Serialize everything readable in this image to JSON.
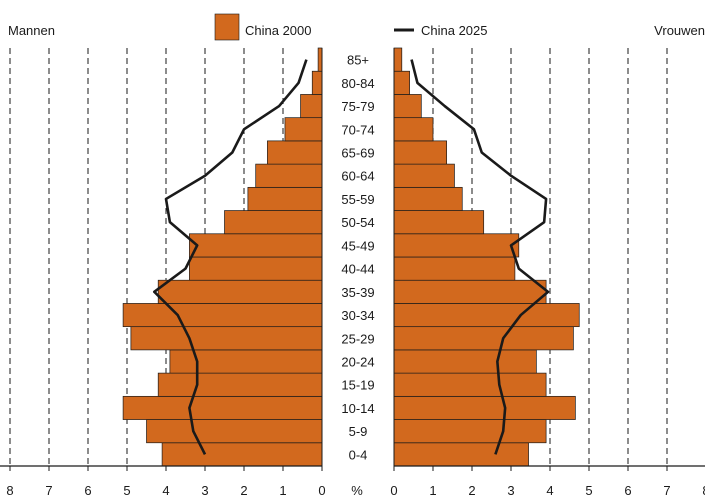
{
  "chart_data": {
    "type": "population-pyramid",
    "left_label": "Mannen",
    "right_label": "Vrouwen",
    "unit_label": "%",
    "age_groups": [
      "0-4",
      "5-9",
      "10-14",
      "15-19",
      "20-24",
      "25-29",
      "30-34",
      "35-39",
      "40-44",
      "45-49",
      "50-54",
      "55-59",
      "60-64",
      "65-69",
      "70-74",
      "75-79",
      "80-84",
      "85+"
    ],
    "x_ticks": [
      "0",
      "1",
      "2",
      "3",
      "4",
      "5",
      "6",
      "7",
      "8"
    ],
    "xlim": [
      0,
      8
    ],
    "series": [
      {
        "name": "China 2000",
        "kind": "bar",
        "color": "#d2691e",
        "male": [
          4.1,
          4.5,
          5.1,
          4.2,
          3.9,
          4.9,
          5.1,
          4.2,
          3.4,
          3.4,
          2.5,
          1.9,
          1.7,
          1.4,
          0.95,
          0.55,
          0.25,
          0.1
        ],
        "female": [
          3.45,
          3.9,
          4.65,
          3.9,
          3.65,
          4.6,
          4.75,
          3.9,
          3.1,
          3.2,
          2.3,
          1.75,
          1.55,
          1.35,
          1.0,
          0.7,
          0.4,
          0.2
        ]
      },
      {
        "name": "China 2025",
        "kind": "line",
        "color": "#1a1a1a",
        "male": [
          3.0,
          3.3,
          3.4,
          3.2,
          3.2,
          3.4,
          3.7,
          4.3,
          3.5,
          3.2,
          3.9,
          4.0,
          3.0,
          2.3,
          2.0,
          1.1,
          0.6,
          0.4
        ],
        "female": [
          2.6,
          2.8,
          2.85,
          2.7,
          2.65,
          2.8,
          3.25,
          3.95,
          3.2,
          3.0,
          3.85,
          3.9,
          3.0,
          2.25,
          2.05,
          1.3,
          0.6,
          0.45
        ]
      }
    ]
  }
}
